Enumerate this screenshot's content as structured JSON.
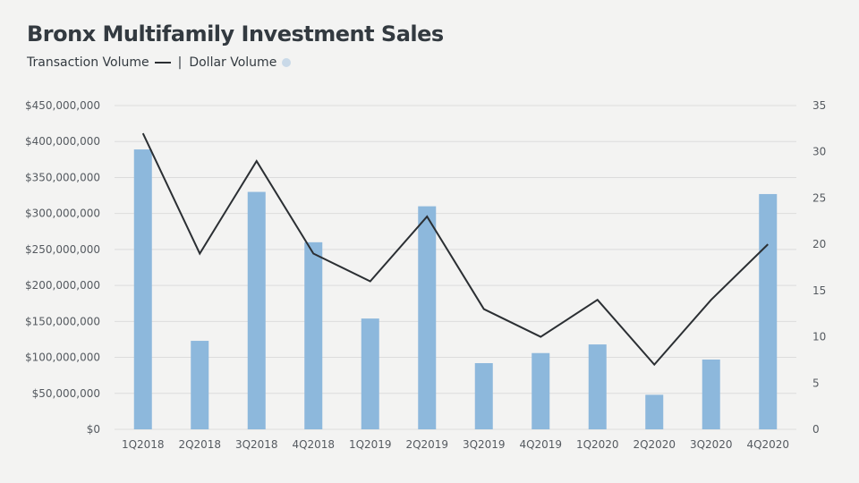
{
  "title": "Bronx Multifamily Investment Sales",
  "legend": {
    "line_label": "Transaction Volume",
    "separator": "|",
    "bar_label": "Dollar Volume"
  },
  "colors": {
    "bar": "#8db8dc",
    "line": "#2b2f33",
    "grid": "#dcdcdc",
    "bar_legend": "#c9d9e8"
  },
  "chart_data": {
    "type": "bar",
    "categories": [
      "1Q2018",
      "2Q2018",
      "3Q2018",
      "4Q2018",
      "1Q2019",
      "2Q2019",
      "3Q2019",
      "4Q2019",
      "1Q2020",
      "2Q2020",
      "3Q2020",
      "4Q2020"
    ],
    "series": [
      {
        "name": "Dollar Volume",
        "type": "bar",
        "axis": "left",
        "values": [
          389000000,
          123000000,
          330000000,
          260000000,
          154000000,
          310000000,
          92000000,
          106000000,
          118000000,
          48000000,
          97000000,
          327000000
        ]
      },
      {
        "name": "Transaction Volume",
        "type": "line",
        "axis": "right",
        "values": [
          32,
          19,
          29,
          19,
          16,
          23,
          13,
          10,
          14,
          7,
          14,
          20
        ]
      }
    ],
    "y_left": {
      "min": 0,
      "max": 450000000,
      "step": 50000000,
      "tick_labels": [
        "$0",
        "$50,000,000",
        "$100,000,000",
        "$150,000,000",
        "$200,000,000",
        "$250,000,000",
        "$300,000,000",
        "$350,000,000",
        "$400,000,000",
        "$450,000,000"
      ]
    },
    "y_right": {
      "min": 0,
      "max": 35,
      "step": 5,
      "tick_labels": [
        "0",
        "5",
        "10",
        "15",
        "20",
        "25",
        "30",
        "35"
      ]
    },
    "grid": true
  }
}
